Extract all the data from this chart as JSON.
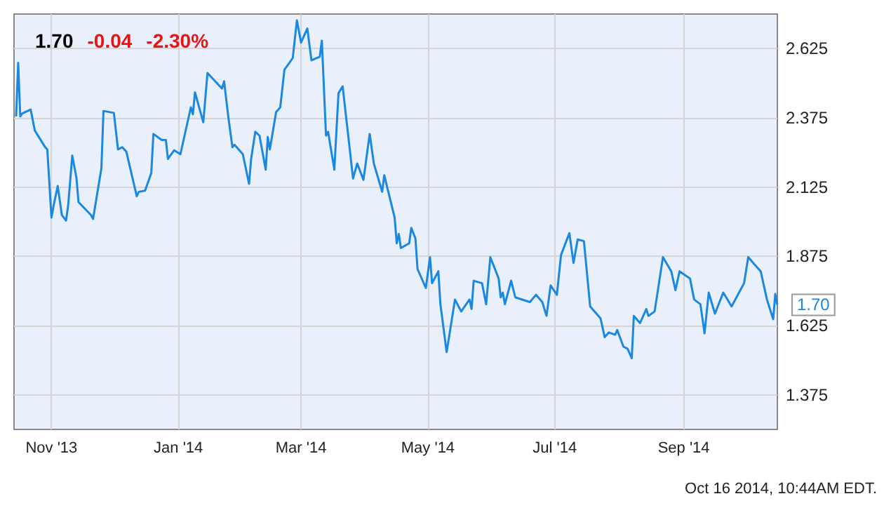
{
  "chart_data": {
    "type": "line",
    "title": "1.70 -0.04 -2.30%",
    "x": [
      "2013-10-15",
      "2013-10-16",
      "2013-10-17",
      "2013-10-18",
      "2013-10-22",
      "2013-10-24",
      "2013-10-29",
      "2013-10-30",
      "2013-11-01",
      "2013-11-02",
      "2013-11-04",
      "2013-11-06",
      "2013-11-08",
      "2013-11-09",
      "2013-11-11",
      "2013-11-13",
      "2013-11-14",
      "2013-11-20",
      "2013-11-21",
      "2013-11-25",
      "2013-11-26",
      "2013-12-01",
      "2013-12-03",
      "2013-12-05",
      "2013-12-07",
      "2013-12-12",
      "2013-12-13",
      "2013-12-16",
      "2013-12-19",
      "2013-12-20",
      "2013-12-24",
      "2013-12-26",
      "2013-12-27",
      "2013-12-30",
      "2014-01-02",
      "2014-01-07",
      "2014-01-08",
      "2014-01-09",
      "2014-01-13",
      "2014-01-15",
      "2014-01-22",
      "2014-01-23",
      "2014-01-25",
      "2014-01-27",
      "2014-01-28",
      "2014-02-01",
      "2014-02-04",
      "2014-02-05",
      "2014-02-07",
      "2014-02-09",
      "2014-02-12",
      "2014-02-13",
      "2014-02-14",
      "2014-02-17",
      "2014-02-19",
      "2014-02-21",
      "2014-02-25",
      "2014-02-27",
      "2014-03-01",
      "2014-03-04",
      "2014-03-06",
      "2014-03-10",
      "2014-03-11",
      "2014-03-13",
      "2014-03-14",
      "2014-03-17",
      "2014-03-19",
      "2014-03-21",
      "2014-03-26",
      "2014-03-28",
      "2014-03-31",
      "2014-04-03",
      "2014-04-05",
      "2014-04-09",
      "2014-04-10",
      "2014-04-15",
      "2014-04-16",
      "2014-04-17",
      "2014-04-18",
      "2014-04-22",
      "2014-04-23",
      "2014-04-25",
      "2014-04-26",
      "2014-04-30",
      "2014-05-02",
      "2014-05-03",
      "2014-05-06",
      "2014-05-07",
      "2014-05-10",
      "2014-05-14",
      "2014-05-17",
      "2014-05-21",
      "2014-05-22",
      "2014-05-23",
      "2014-05-27",
      "2014-05-29",
      "2014-05-31",
      "2014-06-04",
      "2014-06-05",
      "2014-06-06",
      "2014-06-07",
      "2014-06-10",
      "2014-06-12",
      "2014-06-19",
      "2014-06-22",
      "2014-06-25",
      "2014-06-27",
      "2014-06-29",
      "2014-07-02",
      "2014-07-04",
      "2014-07-08",
      "2014-07-10",
      "2014-07-12",
      "2014-07-15",
      "2014-07-18",
      "2014-07-23",
      "2014-07-25",
      "2014-07-27",
      "2014-07-30",
      "2014-07-31",
      "2014-08-03",
      "2014-08-05",
      "2014-08-07",
      "2014-08-08",
      "2014-08-11",
      "2014-08-12",
      "2014-08-14",
      "2014-08-15",
      "2014-08-18",
      "2014-08-22",
      "2014-08-26",
      "2014-08-28",
      "2014-08-30",
      "2014-09-04",
      "2014-09-06",
      "2014-09-09",
      "2014-09-11",
      "2014-09-13",
      "2014-09-16",
      "2014-09-20",
      "2014-09-24",
      "2014-09-30",
      "2014-10-02",
      "2014-10-05",
      "2014-10-08",
      "2014-10-11",
      "2014-10-14",
      "2014-10-15",
      "2014-10-16"
    ],
    "series": [
      {
        "color": "#1a88e0",
        "values": [
          2.38,
          2.574,
          2.38,
          2.391,
          2.405,
          2.329,
          2.269,
          2.261,
          2.015,
          2.057,
          2.129,
          2.024,
          2.004,
          2.057,
          2.239,
          2.159,
          2.071,
          2.024,
          2.01,
          2.193,
          2.4,
          2.393,
          2.261,
          2.269,
          2.253,
          2.092,
          2.108,
          2.112,
          2.176,
          2.317,
          2.295,
          2.295,
          2.227,
          2.258,
          2.244,
          2.413,
          2.388,
          2.467,
          2.359,
          2.537,
          2.481,
          2.507,
          2.38,
          2.269,
          2.278,
          2.244,
          2.137,
          2.227,
          2.325,
          2.311,
          2.188,
          2.306,
          2.261,
          2.396,
          2.413,
          2.549,
          2.591,
          2.727,
          2.647,
          2.698,
          2.583,
          2.596,
          2.654,
          2.311,
          2.325,
          2.188,
          2.464,
          2.489,
          2.156,
          2.21,
          2.151,
          2.317,
          2.21,
          2.108,
          2.168,
          2.015,
          1.922,
          1.956,
          1.905,
          1.922,
          1.978,
          1.939,
          1.829,
          1.761,
          1.872,
          1.778,
          1.821,
          1.702,
          1.529,
          1.719,
          1.676,
          1.719,
          1.685,
          1.787,
          1.778,
          1.702,
          1.872,
          1.795,
          1.727,
          1.744,
          1.702,
          1.787,
          1.727,
          1.71,
          1.736,
          1.71,
          1.66,
          1.77,
          1.736,
          1.88,
          1.959,
          1.851,
          1.936,
          1.93,
          1.694,
          1.651,
          1.583,
          1.6,
          1.592,
          1.609,
          1.549,
          1.541,
          1.507,
          1.66,
          1.634,
          1.651,
          1.685,
          1.66,
          1.676,
          1.872,
          1.821,
          1.753,
          1.821,
          1.795,
          1.719,
          1.702,
          1.597,
          1.744,
          1.668,
          1.744,
          1.694,
          1.778,
          1.872,
          1.846,
          1.821,
          1.719,
          1.648,
          1.739,
          1.7
        ]
      }
    ],
    "xlim": [
      "2013-10-14",
      "2014-10-16"
    ],
    "xticks": [
      {
        "value": "2013-11-01",
        "label": "Nov '13"
      },
      {
        "value": "2014-01-01",
        "label": "Jan '14"
      },
      {
        "value": "2014-03-01",
        "label": "Mar '14"
      },
      {
        "value": "2014-05-01",
        "label": "May '14"
      },
      {
        "value": "2014-07-01",
        "label": "Jul '14"
      },
      {
        "value": "2014-09-01",
        "label": "Sep '14"
      }
    ],
    "ylim": [
      1.25,
      2.75
    ],
    "yticks": [
      1.375,
      1.625,
      1.875,
      2.125,
      2.375,
      2.625
    ],
    "grid": true,
    "annotations": [
      {
        "text": "1.70",
        "x": "2014-10-16",
        "y": 1.7
      },
      "Oct 16 2014, 10:44AM EDT."
    ]
  }
}
